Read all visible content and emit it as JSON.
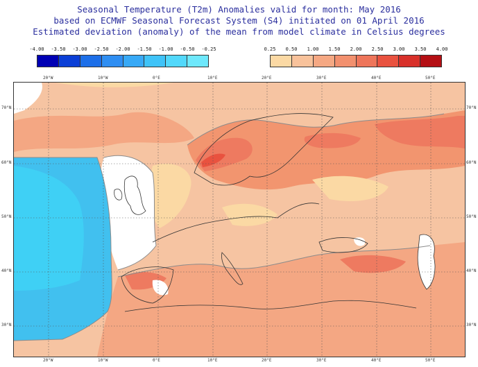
{
  "title": {
    "line1": "Seasonal Temperature (T2m) Anomalies valid for month: May 2016",
    "line2": "based on ECMWF Seasonal Forecast System (S4) initiated on 01 April 2016",
    "line3": "Estimated deviation (anomaly) of the mean from model climate in Celsius degrees"
  },
  "legend_cold": {
    "ticks": [
      "-4.00",
      "-3.50",
      "-3.00",
      "-2.50",
      "-2.00",
      "-1.50",
      "-1.00",
      "-0.50",
      "-0.25"
    ],
    "colors": [
      "#0000b4",
      "#0b3fd6",
      "#1d6fe8",
      "#2f8ef2",
      "#38a9f6",
      "#3fc3f8",
      "#52d8fb",
      "#6ee8fc"
    ]
  },
  "legend_warm": {
    "ticks": [
      "0.25",
      "0.50",
      "1.00",
      "1.50",
      "2.00",
      "2.50",
      "3.00",
      "3.50",
      "4.00"
    ],
    "colors": [
      "#fbd9a4",
      "#f8c29b",
      "#f5a883",
      "#f2906e",
      "#ee755a",
      "#e9523f",
      "#d8302a",
      "#b40f14"
    ]
  },
  "axes": {
    "lon_labels": [
      "20°W",
      "10°W",
      "0°E",
      "10°E",
      "20°E",
      "30°E",
      "40°E",
      "50°E"
    ],
    "lat_labels": [
      "70°N",
      "60°N",
      "50°N",
      "40°N",
      "30°N"
    ]
  },
  "colors": {
    "ocean_cold": "#3fd0f5",
    "ocean_mild": "#41c0ef",
    "neutral": "#ffffff",
    "warm_light": "#f8c8a6",
    "warm_mid": "#f4a783",
    "warm_strong": "#ee7a60",
    "contour": "#8b8b8b",
    "coast": "#333333",
    "title_text": "#2b2f9e"
  }
}
